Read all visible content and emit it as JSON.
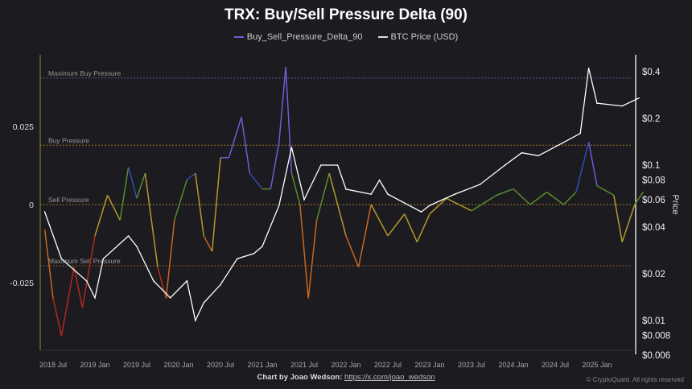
{
  "chart_data": {
    "type": "line",
    "title": "TRX: Buy/Sell Pressure Delta (90)",
    "legend": [
      "Buy_Sell_Pressure_Delta_90",
      "BTC Price (USD)"
    ],
    "legend_placement": "top-center",
    "y_left": {
      "ticks": [
        {
          "v": 0.025,
          "label": "0.025"
        },
        {
          "v": 0,
          "label": "0"
        },
        {
          "v": -0.025,
          "label": "-0.025"
        }
      ],
      "range": [
        -0.05,
        0.045
      ]
    },
    "y_right": {
      "label": "Price",
      "scale": "log",
      "ticks": [
        {
          "v": 0.4,
          "label": "$0.4"
        },
        {
          "v": 0.2,
          "label": "$0.2"
        },
        {
          "v": 0.1,
          "label": "$0.1"
        },
        {
          "v": 0.08,
          "label": "$0.08"
        },
        {
          "v": 0.06,
          "label": "$0.06"
        },
        {
          "v": 0.04,
          "label": "$0.04"
        },
        {
          "v": 0.02,
          "label": "$0.02"
        },
        {
          "v": 0.01,
          "label": "$0.01"
        },
        {
          "v": 0.008,
          "label": "$0.008"
        },
        {
          "v": 0.006,
          "label": "$0.006"
        }
      ]
    },
    "x_ticks": [
      "2018 Jul",
      "2019 Jan",
      "2019 Jul",
      "2020 Jan",
      "2020 Jul",
      "2021 Jan",
      "2021 Jul",
      "2022 Jan",
      "2022 Jul",
      "2023 Jan",
      "2023 Jul",
      "2024 Jan",
      "2024 Jul",
      "2025 Jan"
    ],
    "thresholds": [
      {
        "label": "Maximum Buy Pressure",
        "v": 0.0405
      },
      {
        "label": "Buy Pressure",
        "v": 0.019
      },
      {
        "label": "Sell Pressure",
        "v": 0
      },
      {
        "label": "Maximum Sell Pressure",
        "v": -0.0196
      }
    ],
    "delta": [
      [
        2018.4,
        -0.008
      ],
      [
        2018.5,
        -0.03
      ],
      [
        2018.6,
        -0.042
      ],
      [
        2018.75,
        -0.02
      ],
      [
        2018.85,
        -0.033
      ],
      [
        2019.0,
        -0.01
      ],
      [
        2019.15,
        0.003
      ],
      [
        2019.3,
        -0.005
      ],
      [
        2019.4,
        0.012
      ],
      [
        2019.5,
        0.002
      ],
      [
        2019.6,
        0.01
      ],
      [
        2019.75,
        -0.02
      ],
      [
        2019.85,
        -0.03
      ],
      [
        2019.95,
        -0.005
      ],
      [
        2020.1,
        0.008
      ],
      [
        2020.2,
        0.01
      ],
      [
        2020.3,
        -0.01
      ],
      [
        2020.4,
        -0.015
      ],
      [
        2020.5,
        0.015
      ],
      [
        2020.6,
        0.015
      ],
      [
        2020.75,
        0.028
      ],
      [
        2020.85,
        0.01
      ],
      [
        2021.0,
        0.005
      ],
      [
        2021.1,
        0.005
      ],
      [
        2021.2,
        0.02
      ],
      [
        2021.28,
        0.044
      ],
      [
        2021.35,
        0.01
      ],
      [
        2021.45,
        0.0
      ],
      [
        2021.55,
        -0.03
      ],
      [
        2021.65,
        -0.005
      ],
      [
        2021.8,
        0.01
      ],
      [
        2022.0,
        -0.01
      ],
      [
        2022.15,
        -0.02
      ],
      [
        2022.3,
        0.0
      ],
      [
        2022.5,
        -0.01
      ],
      [
        2022.7,
        -0.003
      ],
      [
        2022.85,
        -0.012
      ],
      [
        2023.0,
        -0.003
      ],
      [
        2023.2,
        0.002
      ],
      [
        2023.5,
        -0.002
      ],
      [
        2023.8,
        0.003
      ],
      [
        2024.0,
        0.005
      ],
      [
        2024.2,
        0.0
      ],
      [
        2024.4,
        0.004
      ],
      [
        2024.6,
        0.0
      ],
      [
        2024.75,
        0.004
      ],
      [
        2024.9,
        0.02
      ],
      [
        2025.0,
        0.006
      ],
      [
        2025.2,
        0.003
      ],
      [
        2025.3,
        -0.012
      ],
      [
        2025.45,
        0.0
      ],
      [
        2025.55,
        0.004
      ]
    ],
    "price": [
      [
        2018.4,
        0.05
      ],
      [
        2018.6,
        0.025
      ],
      [
        2018.9,
        0.018
      ],
      [
        2019.0,
        0.014
      ],
      [
        2019.1,
        0.025
      ],
      [
        2019.4,
        0.035
      ],
      [
        2019.5,
        0.03
      ],
      [
        2019.7,
        0.018
      ],
      [
        2019.9,
        0.014
      ],
      [
        2020.1,
        0.018
      ],
      [
        2020.2,
        0.01
      ],
      [
        2020.3,
        0.013
      ],
      [
        2020.5,
        0.017
      ],
      [
        2020.7,
        0.025
      ],
      [
        2020.9,
        0.027
      ],
      [
        2021.0,
        0.03
      ],
      [
        2021.2,
        0.055
      ],
      [
        2021.35,
        0.13
      ],
      [
        2021.5,
        0.06
      ],
      [
        2021.7,
        0.1
      ],
      [
        2021.9,
        0.1
      ],
      [
        2022.0,
        0.07
      ],
      [
        2022.3,
        0.065
      ],
      [
        2022.4,
        0.08
      ],
      [
        2022.5,
        0.065
      ],
      [
        2022.9,
        0.05
      ],
      [
        2023.0,
        0.055
      ],
      [
        2023.3,
        0.065
      ],
      [
        2023.6,
        0.075
      ],
      [
        2023.9,
        0.1
      ],
      [
        2024.1,
        0.12
      ],
      [
        2024.3,
        0.115
      ],
      [
        2024.6,
        0.14
      ],
      [
        2024.8,
        0.16
      ],
      [
        2024.9,
        0.42
      ],
      [
        2025.0,
        0.25
      ],
      [
        2025.3,
        0.24
      ],
      [
        2025.5,
        0.27
      ]
    ],
    "colors": {
      "buy": "#6b5fd6",
      "blue": "#2e4fb5",
      "green": "#5c8a2e",
      "yellow": "#b59a2a",
      "orange": "#c9671e",
      "red": "#b32a1e",
      "price": "#ffffff"
    }
  },
  "credit": {
    "prefix": "Chart by Joao Wedson:",
    "link": "https://x.com/joao_wedson"
  },
  "copyright": "© CryptoQuant. All rights reserved"
}
